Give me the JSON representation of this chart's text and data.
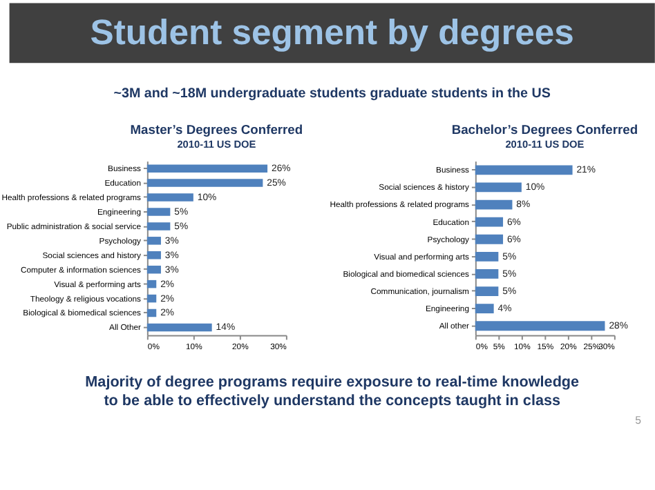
{
  "chart_data": [
    {
      "type": "bar",
      "orientation": "horizontal",
      "title": "Master’s Degrees Conferred",
      "subtitle": "2010-11 US DOE",
      "categories": [
        "Business",
        "Education",
        "Health professions & related programs",
        "Engineering",
        "Public administration & social service",
        "Psychology",
        "Social sciences and history",
        "Computer & information sciences",
        "Visual & performing arts",
        "Theology & religious vocations",
        "Biological & biomedical sciences",
        "All Other"
      ],
      "values": [
        26,
        25,
        10,
        5,
        5,
        3,
        3,
        3,
        2,
        2,
        2,
        14
      ],
      "value_labels": [
        "26%",
        "25%",
        "10%",
        "5%",
        "5%",
        "3%",
        "3%",
        "3%",
        "2%",
        "2%",
        "2%",
        "14%"
      ],
      "color": "#4f81bd",
      "xlim": [
        0,
        30
      ],
      "xticks": [
        {
          "value": 0,
          "label": "0%"
        },
        {
          "value": 10,
          "label": "10%"
        },
        {
          "value": 20,
          "label": "20%"
        },
        {
          "value": 30,
          "label": "30%"
        }
      ],
      "grid": false,
      "legend": false,
      "annotations": [
        "Student segment by degrees",
        "~3M and ~18M undergraduate students graduate students in the US",
        "Majority of degree programs require exposure to real-time knowledge to be able to effectively understand the concepts taught in class",
        "5"
      ]
    },
    {
      "type": "bar",
      "orientation": "horizontal",
      "title": "Bachelor’s Degrees Conferred",
      "subtitle": "2010-11 US DOE",
      "categories": [
        "Business",
        "Social sciences & history",
        "Health professions & related programs",
        "Education",
        "Psychology",
        "Visual and performing arts",
        "Biological and biomedical sciences",
        "Communication, journalism",
        "Engineering",
        "All other"
      ],
      "values": [
        21,
        10,
        8,
        6,
        6,
        5,
        5,
        5,
        4,
        28
      ],
      "value_labels": [
        "21%",
        "10%",
        "8%",
        "6%",
        "6%",
        "5%",
        "5%",
        "5%",
        "4%",
        "28%"
      ],
      "color": "#4f81bd",
      "xlim": [
        0,
        30
      ],
      "xticks": [
        {
          "value": 0,
          "label": "0%"
        },
        {
          "value": 5,
          "label": "5%"
        },
        {
          "value": 10,
          "label": "10%"
        },
        {
          "value": 15,
          "label": "15%"
        },
        {
          "value": 20,
          "label": "20%"
        },
        {
          "value": 25,
          "label": "25%"
        },
        {
          "value": 30,
          "label": "30%"
        }
      ],
      "grid": false,
      "legend": false
    }
  ]
}
